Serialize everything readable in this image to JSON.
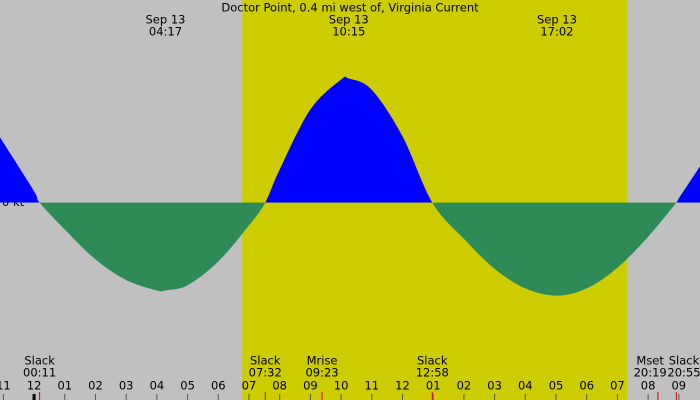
{
  "chart_data": {
    "type": "area",
    "title": "Doctor Point, 0.4 mi west of, Virginia Current",
    "zero_label": "0 kt",
    "x": [
      -1.11,
      -1,
      0,
      0.18,
      1,
      2,
      3,
      4,
      4.28,
      5,
      6,
      7,
      7.53,
      8,
      9,
      10,
      10.25,
      11,
      12,
      12.97,
      14,
      15,
      16,
      17.03,
      18,
      19,
      20,
      20.92,
      21,
      21.69
    ],
    "values": [
      0.63,
      0.58,
      0.11,
      0,
      -0.26,
      -0.55,
      -0.75,
      -0.85,
      -0.85,
      -0.8,
      -0.57,
      -0.22,
      0,
      0.32,
      0.9,
      1.19,
      1.2,
      1.09,
      0.64,
      0,
      -0.35,
      -0.64,
      -0.83,
      -0.9,
      -0.83,
      -0.63,
      -0.33,
      0,
      0.04,
      0.35
    ],
    "flood_color": "#0000ff",
    "ebb_color": "#2e8b57",
    "night_color": "#c0c0c0",
    "day_color": "#cccc00",
    "daylight": [
      6.78,
      19.32
    ],
    "xlim": [
      -1.11,
      21.69
    ],
    "ylim": [
      -1.91,
      1.96
    ],
    "xticks": [
      {
        "value": -1,
        "label": "11"
      },
      {
        "value": 0,
        "label": "12"
      },
      {
        "value": 1,
        "label": "01"
      },
      {
        "value": 2,
        "label": "02"
      },
      {
        "value": 3,
        "label": "03"
      },
      {
        "value": 4,
        "label": "04"
      },
      {
        "value": 5,
        "label": "05"
      },
      {
        "value": 6,
        "label": "06"
      },
      {
        "value": 7,
        "label": "07"
      },
      {
        "value": 8,
        "label": "08"
      },
      {
        "value": 9,
        "label": "09"
      },
      {
        "value": 10,
        "label": "10"
      },
      {
        "value": 11,
        "label": "11"
      },
      {
        "value": 12,
        "label": "12"
      },
      {
        "value": 13,
        "label": "01"
      },
      {
        "value": 14,
        "label": "02"
      },
      {
        "value": 15,
        "label": "03"
      },
      {
        "value": 16,
        "label": "04"
      },
      {
        "value": 17,
        "label": "05"
      },
      {
        "value": 18,
        "label": "06"
      },
      {
        "value": 19,
        "label": "07"
      },
      {
        "value": 20,
        "label": "08"
      },
      {
        "value": 21,
        "label": "09"
      }
    ],
    "peaks": [
      {
        "date": "Sep 13",
        "time": "04:17",
        "x": 4.28
      },
      {
        "date": "Sep 13",
        "time": "10:15",
        "x": 10.25
      },
      {
        "date": "Sep 13",
        "time": "17:02",
        "x": 17.03
      }
    ],
    "events": [
      {
        "name": "Slack",
        "time": "00:11",
        "x": 0.18
      },
      {
        "name": "Slack",
        "time": "07:32",
        "x": 7.53
      },
      {
        "name": "Mrise",
        "time": "09:23",
        "x": 9.38
      },
      {
        "name": "Slack",
        "time": "12:58",
        "x": 12.97
      },
      {
        "name": "Mset",
        "time": "20:19",
        "x": 20.32
      },
      {
        "name": "Slack",
        "time": "20:55",
        "x": 20.92
      }
    ]
  }
}
